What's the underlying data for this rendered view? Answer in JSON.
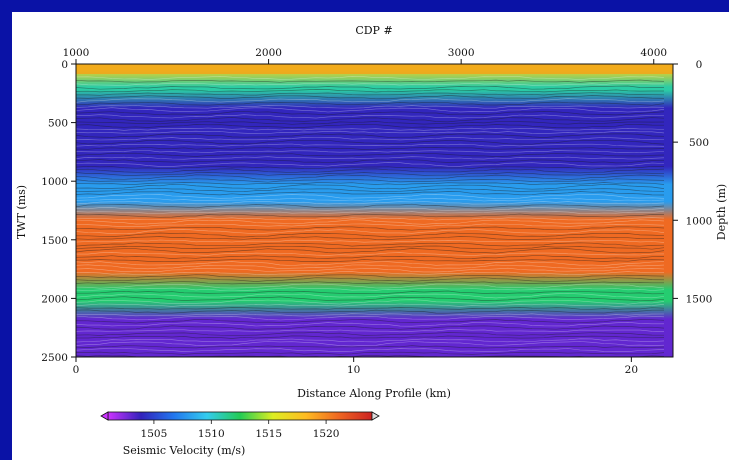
{
  "chart_data": {
    "type": "heatmap",
    "title": "",
    "top_axis": {
      "label": "CDP #",
      "range": [
        1000,
        4100
      ],
      "ticks": [
        1000,
        2000,
        3000,
        4000
      ]
    },
    "left_axis": {
      "label": "TWT (ms)",
      "range": [
        0,
        2500
      ],
      "ticks": [
        0,
        500,
        1000,
        1500,
        2000,
        2500
      ]
    },
    "right_axis": {
      "label": "Depth (m)",
      "range": [
        0,
        1875
      ],
      "ticks": [
        0,
        500,
        1000,
        1500
      ]
    },
    "bottom_axis": {
      "label": "Distance Along Profile (km)",
      "range": [
        0,
        21.5
      ],
      "ticks": [
        0,
        10,
        20
      ]
    },
    "colorbar": {
      "label": "Seismic Velocity (m/s)",
      "range": [
        1501,
        1524
      ],
      "ticks": [
        1505,
        1510,
        1515,
        1520
      ],
      "colors": [
        "#cc33ff",
        "#3322bb",
        "#2277ee",
        "#33ccee",
        "#22cc55",
        "#ddee22",
        "#ffbb22",
        "#ee6622",
        "#cc2222"
      ]
    },
    "velocity_layers": [
      {
        "twt_ms": [
          0,
          120
        ],
        "velocity": 1517
      },
      {
        "twt_ms": [
          120,
          300
        ],
        "velocity": 1511
      },
      {
        "twt_ms": [
          300,
          950
        ],
        "velocity": 1504
      },
      {
        "twt_ms": [
          950,
          1250
        ],
        "velocity": 1508
      },
      {
        "twt_ms": [
          1250,
          1850
        ],
        "velocity": 1521
      },
      {
        "twt_ms": [
          1850,
          2100
        ],
        "velocity": 1512
      },
      {
        "twt_ms": [
          2100,
          2500
        ],
        "velocity": 1503
      }
    ]
  },
  "text": {
    "top_label": "CDP #",
    "left_label": "TWT (ms)",
    "right_label": "Depth (m)",
    "bottom_label": "Distance Along Profile (km)",
    "colorbar_label": "Seismic Velocity (m/s)"
  }
}
